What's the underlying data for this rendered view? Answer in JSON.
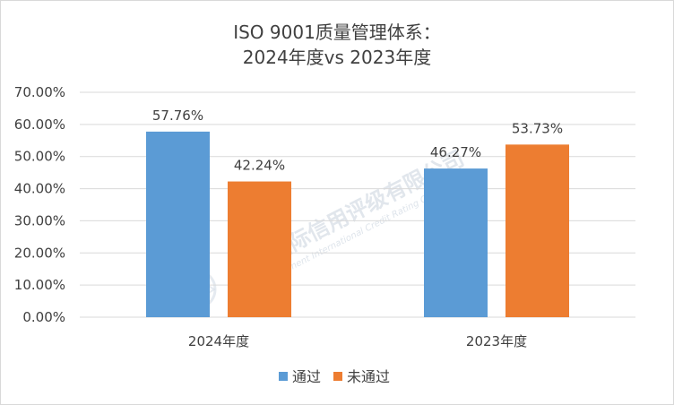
{
  "chart_data": {
    "type": "bar",
    "title_lines": [
      "ISO 9001质量管理体系：",
      "2024年度vs 2023年度"
    ],
    "categories": [
      "2024年度",
      "2023年度"
    ],
    "series": [
      {
        "name": "通过",
        "values": [
          57.76,
          46.27
        ],
        "labels": [
          "57.76%",
          "46.27%"
        ],
        "color": "#5b9bd5"
      },
      {
        "name": "未通过",
        "values": [
          42.24,
          53.73
        ],
        "labels": [
          "42.24%",
          "53.73%"
        ],
        "color": "#ed7d31"
      }
    ],
    "yticks": [
      "0.00%",
      "10.00%",
      "20.00%",
      "30.00%",
      "40.00%",
      "50.00%",
      "60.00%",
      "70.00%"
    ],
    "ylim": [
      0,
      70
    ],
    "grid": true,
    "legend_position": "bottom"
  },
  "watermark": {
    "text": "联洲国际信用评级有限公司",
    "subtext": "United Continent International Credit Rating Co.,Ltd",
    "color": "#c9d3de"
  },
  "colors": {
    "grid": "#d9d9d9",
    "axis": "#d9d9d9",
    "text": "#404040"
  }
}
